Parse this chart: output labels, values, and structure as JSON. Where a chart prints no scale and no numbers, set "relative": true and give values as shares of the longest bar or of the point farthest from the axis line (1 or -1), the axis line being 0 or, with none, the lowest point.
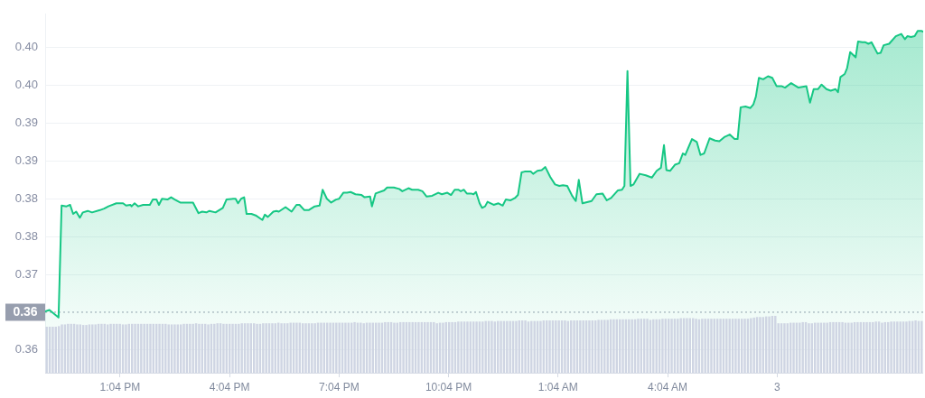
{
  "chart_data": [
    {
      "type": "area",
      "color": "#16c784",
      "grid": "y",
      "x": [
        "--01-02T11:01",
        "--01-02T11:08",
        "--01-02T11:23",
        "--01-02T11:28",
        "--01-02T11:36",
        "--01-02T11:42",
        "--01-02T11:47",
        "--01-02T11:52",
        "--01-02T11:58",
        "--01-02T12:03",
        "--01-02T12:11",
        "--01-02T12:18",
        "--01-02T12:31",
        "--01-02T12:38",
        "--01-02T12:45",
        "--01-02T12:58",
        "--01-02T13:09",
        "--01-02T13:14",
        "--01-02T13:21",
        "--01-02T13:23",
        "--01-02T13:28",
        "--01-02T13:34",
        "--01-02T13:42",
        "--01-02T13:53",
        "--01-02T13:58",
        "--01-02T14:04",
        "--01-02T14:08",
        "--01-02T14:13",
        "--01-02T14:22",
        "--01-02T14:28",
        "--01-02T14:34",
        "--01-02T14:43",
        "--01-02T14:49",
        "--01-02T14:54",
        "--01-02T15:04",
        "--01-02T15:13",
        "--01-02T15:19",
        "--01-02T15:26",
        "--01-02T15:31",
        "--01-02T15:41",
        "--01-02T15:53",
        "--01-02T15:59",
        "--01-02T16:10",
        "--01-02T16:14",
        "--01-02T16:18",
        "--01-02T16:23",
        "--01-02T16:28",
        "--01-02T16:32",
        "--01-02T16:40",
        "--01-02T16:47",
        "--01-02T16:58",
        "--01-02T17:02",
        "--01-02T17:07",
        "--01-02T17:16",
        "--01-02T17:21",
        "--01-02T17:25",
        "--01-02T17:36",
        "--01-02T17:46",
        "--01-02T17:54",
        "--01-02T17:59",
        "--01-02T18:07",
        "--01-02T18:14",
        "--01-02T18:24",
        "--01-02T18:32",
        "--01-02T18:37",
        "--01-02T18:44",
        "--01-02T18:51",
        "--01-02T18:59",
        "--01-02T19:04",
        "--01-02T19:11",
        "--01-02T19:17",
        "--01-02T19:23",
        "--01-02T19:31",
        "--01-02T19:41",
        "--01-02T19:46",
        "--01-02T19:55",
        "--01-02T19:58",
        "--01-02T20:04",
        "--01-02T20:18",
        "--01-02T20:23",
        "--01-02T20:34",
        "--01-02T20:43",
        "--01-02T20:48",
        "--01-02T20:58",
        "--01-02T21:04",
        "--01-02T21:14",
        "--01-02T21:21",
        "--01-02T21:28",
        "--01-02T21:37",
        "--01-02T21:47",
        "--01-02T21:53",
        "--01-02T22:02",
        "--01-02T22:08",
        "--01-02T22:14",
        "--01-02T22:20",
        "--01-02T22:24",
        "--01-02T22:29",
        "--01-02T22:34",
        "--01-02T22:41",
        "--01-02T22:45",
        "--01-02T22:49",
        "--01-02T22:55",
        "--01-02T22:59",
        "--01-02T23:04",
        "--01-02T23:08",
        "--01-02T23:18",
        "--01-02T23:26",
        "--01-02T23:33",
        "--01-02T23:38",
        "--01-02T23:46",
        "--01-02T23:53",
        "--01-02T23:58",
        "--01-03T00:04",
        "--01-03T00:09",
        "--01-03T00:19",
        "--01-03T00:23",
        "--01-03T00:30",
        "--01-03T00:37",
        "--01-03T00:43",
        "--01-03T00:51",
        "--01-03T00:59",
        "--01-03T01:06",
        "--01-03T01:12",
        "--01-03T01:19",
        "--01-03T01:27",
        "--01-03T01:33",
        "--01-03T01:38",
        "--01-03T01:44",
        "--01-03T01:59",
        "--01-03T02:07",
        "--01-03T02:17",
        "--01-03T02:24",
        "--01-03T02:31",
        "--01-03T02:42",
        "--01-03T02:49",
        "--01-03T02:53",
        "--01-03T02:58",
        "--01-03T03:03",
        "--01-03T03:08",
        "--01-03T03:18",
        "--01-03T03:28",
        "--01-03T03:38",
        "--01-03T03:46",
        "--01-03T03:53",
        "--01-03T03:58",
        "--01-03T04:02",
        "--01-03T04:08",
        "--01-03T04:16",
        "--01-03T04:23",
        "--01-03T04:29",
        "--01-03T04:33",
        "--01-03T04:44",
        "--01-03T04:52",
        "--01-03T04:58",
        "--01-03T05:04",
        "--01-03T05:13",
        "--01-03T05:22",
        "--01-03T05:29",
        "--01-03T05:38",
        "--01-03T05:46",
        "--01-03T05:54",
        "--01-03T05:59",
        "--01-03T06:04",
        "--01-03T06:12",
        "--01-03T06:20",
        "--01-03T06:25",
        "--01-03T06:29",
        "--01-03T06:34",
        "--01-03T06:41",
        "--01-03T06:49",
        "--01-03T06:56",
        "--01-03T07:03",
        "--01-03T07:11",
        "--01-03T07:17",
        "--01-03T07:27",
        "--01-03T07:39",
        "--01-03T07:52",
        "--01-03T07:58",
        "--01-03T08:04",
        "--01-03T08:11",
        "--01-03T08:17",
        "--01-03T08:25",
        "--01-03T08:32",
        "--01-03T08:40",
        "--01-03T08:44",
        "--01-03T08:48",
        "--01-03T08:55",
        "--01-03T08:59",
        "--01-03T09:04",
        "--01-03T09:13",
        "--01-03T09:17",
        "--01-03T09:24",
        "--01-03T09:29",
        "--01-03T09:34",
        "--01-03T09:39",
        "--01-03T09:49",
        "--01-03T09:54",
        "--01-03T09:59",
        "--01-03T10:08",
        "--01-03T10:19",
        "--01-03T10:28",
        "--01-03T10:34",
        "--01-03T10:38",
        "--01-03T10:44",
        "--01-03T10:50",
        "--01-03T10:55",
        "--01-03T11:01",
        "--01-03T11:04"
      ],
      "values": [
        0.3701,
        0.3703,
        0.3693,
        0.3841,
        0.384,
        0.3842,
        0.383,
        0.3833,
        0.3825,
        0.3832,
        0.3834,
        0.3832,
        0.3835,
        0.3837,
        0.384,
        0.3844,
        0.3844,
        0.3841,
        0.3842,
        0.384,
        0.3844,
        0.384,
        0.3842,
        0.3842,
        0.3849,
        0.3849,
        0.3842,
        0.385,
        0.3849,
        0.3852,
        0.3849,
        0.3845,
        0.3845,
        0.3845,
        0.3845,
        0.3831,
        0.3833,
        0.3832,
        0.3834,
        0.3832,
        0.3838,
        0.3849,
        0.385,
        0.385,
        0.3844,
        0.385,
        0.3852,
        0.383,
        0.383,
        0.3828,
        0.3822,
        0.3829,
        0.3826,
        0.3833,
        0.3834,
        0.3833,
        0.3839,
        0.3833,
        0.3842,
        0.3842,
        0.3835,
        0.3835,
        0.384,
        0.3841,
        0.3862,
        0.385,
        0.3845,
        0.3849,
        0.385,
        0.3858,
        0.3858,
        0.3859,
        0.3856,
        0.3855,
        0.3852,
        0.3853,
        0.384,
        0.3857,
        0.3861,
        0.3865,
        0.3865,
        0.3863,
        0.386,
        0.3864,
        0.3862,
        0.3862,
        0.386,
        0.3853,
        0.3854,
        0.3858,
        0.3856,
        0.3858,
        0.3855,
        0.3862,
        0.3862,
        0.386,
        0.3862,
        0.3857,
        0.3857,
        0.3856,
        0.3859,
        0.3844,
        0.3838,
        0.384,
        0.3846,
        0.3842,
        0.3844,
        0.3841,
        0.3849,
        0.3848,
        0.3851,
        0.3855,
        0.3885,
        0.3886,
        0.3886,
        0.3883,
        0.3887,
        0.3888,
        0.3892,
        0.3879,
        0.3869,
        0.3867,
        0.3868,
        0.3867,
        0.3854,
        0.3847,
        0.3875,
        0.3844,
        0.3847,
        0.3856,
        0.3857,
        0.3848,
        0.3851,
        0.3861,
        0.3862,
        0.3867,
        0.4019,
        0.3867,
        0.3869,
        0.3883,
        0.3881,
        0.3878,
        0.3887,
        0.3891,
        0.3921,
        0.3888,
        0.3887,
        0.3895,
        0.3897,
        0.391,
        0.3908,
        0.3929,
        0.3925,
        0.3908,
        0.391,
        0.393,
        0.3927,
        0.3926,
        0.3932,
        0.3935,
        0.3929,
        0.3929,
        0.3971,
        0.3972,
        0.397,
        0.3975,
        0.3985,
        0.401,
        0.4008,
        0.4012,
        0.401,
        0.3999,
        0.3999,
        0.3997,
        0.4003,
        0.3997,
        0.3999,
        0.3977,
        0.3995,
        0.3995,
        0.4001,
        0.3995,
        0.3993,
        0.3995,
        0.3991,
        0.4011,
        0.4015,
        0.4023,
        0.4044,
        0.4037,
        0.4058,
        0.4057,
        0.4057,
        0.4055,
        0.4057,
        0.4042,
        0.4043,
        0.4053,
        0.4055,
        0.4065,
        0.4068,
        0.4061,
        0.4065,
        0.4064,
        0.4065,
        0.4072,
        0.4072,
        0.4071
      ],
      "xlim": [
        "--01-02T11:01",
        "--01-03T11:04"
      ],
      "xticks": [
        {
          "value": "--01-02T13:04",
          "label": "1:04 PM"
        },
        {
          "value": "--01-02T16:04",
          "label": "4:04 PM"
        },
        {
          "value": "--01-02T19:04",
          "label": "7:04 PM"
        },
        {
          "value": "--01-02T22:04",
          "label": "10:04 PM"
        },
        {
          "value": "--01-03T01:04",
          "label": "1:04 AM"
        },
        {
          "value": "--01-03T04:04",
          "label": "4:04 AM"
        },
        {
          "value": "--01-03T07:04",
          "label": "3"
        }
      ],
      "ylim": [
        0.362,
        0.4094
      ],
      "yticks": [
        {
          "value": 0.405,
          "label": "0.40"
        },
        {
          "value": 0.4,
          "label": "0.40"
        },
        {
          "value": 0.395,
          "label": "0.39"
        },
        {
          "value": 0.39,
          "label": "0.39"
        },
        {
          "value": 0.385,
          "label": "0.38"
        },
        {
          "value": 0.38,
          "label": "0.38"
        },
        {
          "value": 0.375,
          "label": "0.37"
        },
        {
          "value": 0.365,
          "label": "0.36"
        }
      ],
      "ref_lines": [
        {
          "axis": "y",
          "value": 0.37,
          "color": "#979eae",
          "line_style": "dotted"
        }
      ],
      "annotations": [
        "0.36"
      ]
    },
    {
      "type": "bar",
      "relative": true,
      "color": "#cfd5e3",
      "tick_labels": false,
      "categories": [
        null,
        null,
        null,
        null,
        null,
        null,
        null,
        null,
        null,
        null,
        null,
        null,
        null,
        null,
        null,
        null,
        null,
        null,
        null,
        null,
        null,
        null,
        null,
        null,
        null,
        null,
        null,
        null,
        null,
        null,
        null,
        null,
        null,
        null,
        null,
        null,
        null,
        null,
        null,
        null,
        null,
        null,
        null,
        null,
        null,
        null,
        null,
        null,
        null,
        null,
        null,
        null,
        null,
        null,
        null,
        null,
        null,
        null,
        null,
        null,
        null,
        null,
        null,
        null,
        null,
        null,
        null,
        null,
        null,
        null,
        null,
        null,
        null,
        null,
        null,
        null,
        null,
        null,
        null,
        null,
        null,
        null,
        null,
        null,
        null,
        null,
        null,
        null,
        null,
        null,
        null,
        null,
        null,
        null,
        null,
        null,
        null,
        null,
        null,
        null,
        null,
        null,
        null,
        null,
        null,
        null,
        null,
        null,
        null,
        null,
        null,
        null,
        null,
        null,
        null,
        null,
        null,
        null,
        null,
        null,
        null,
        null,
        null,
        null,
        null,
        null,
        null,
        null,
        null,
        null,
        null,
        null,
        null,
        null,
        null,
        null,
        null,
        null,
        null,
        null,
        null,
        null,
        null,
        null,
        null,
        null,
        null,
        null,
        null,
        null,
        null,
        null,
        null,
        null,
        null,
        null,
        null,
        null,
        null,
        null,
        null,
        null,
        null,
        null,
        null,
        null,
        null,
        null,
        null,
        null,
        null,
        null,
        null,
        null,
        null,
        null,
        null,
        null,
        null,
        null,
        null,
        null,
        null,
        null,
        null,
        null,
        null,
        null,
        null,
        null,
        null,
        null,
        null,
        null,
        null,
        null,
        null,
        null,
        null,
        null,
        null,
        null,
        null,
        null,
        null,
        null,
        null,
        null,
        null,
        null,
        null,
        null,
        null,
        null,
        null,
        null,
        null,
        null,
        null,
        null,
        null,
        null,
        null,
        null,
        null,
        null,
        null,
        null,
        null,
        null,
        null,
        null,
        null,
        null,
        null,
        null,
        null,
        null,
        null,
        null,
        null,
        null,
        null,
        null,
        null,
        null,
        null,
        null,
        null,
        null,
        null,
        null,
        null,
        null,
        null,
        null,
        null,
        null,
        null,
        null,
        null,
        null,
        null,
        null,
        null,
        null,
        null,
        null,
        null,
        null,
        null,
        null,
        null,
        null,
        null,
        null,
        null,
        null,
        null,
        null,
        null,
        null,
        null,
        null,
        null,
        null,
        null,
        null
      ],
      "values": [
        0.81,
        0.81,
        0.81,
        0.81,
        0.82,
        0.85,
        0.85,
        0.86,
        0.86,
        0.86,
        0.85,
        0.85,
        0.84,
        0.84,
        0.85,
        0.85,
        0.85,
        0.86,
        0.86,
        0.86,
        0.85,
        0.86,
        0.86,
        0.86,
        0.86,
        0.85,
        0.85,
        0.86,
        0.86,
        0.86,
        0.86,
        0.86,
        0.86,
        0.86,
        0.86,
        0.86,
        0.86,
        0.86,
        0.86,
        0.86,
        0.85,
        0.85,
        0.85,
        0.85,
        0.85,
        0.86,
        0.86,
        0.86,
        0.86,
        0.87,
        0.86,
        0.86,
        0.86,
        0.85,
        0.86,
        0.86,
        0.87,
        0.87,
        0.86,
        0.86,
        0.86,
        0.86,
        0.86,
        0.86,
        0.87,
        0.87,
        0.87,
        0.87,
        0.87,
        0.86,
        0.86,
        0.87,
        0.87,
        0.87,
        0.87,
        0.87,
        0.88,
        0.87,
        0.87,
        0.87,
        0.88,
        0.88,
        0.88,
        0.88,
        0.87,
        0.87,
        0.87,
        0.87,
        0.87,
        0.88,
        0.88,
        0.88,
        0.88,
        0.88,
        0.88,
        0.88,
        0.88,
        0.88,
        0.88,
        0.88,
        0.88,
        0.89,
        0.88,
        0.88,
        0.87,
        0.88,
        0.88,
        0.88,
        0.88,
        0.88,
        0.88,
        0.89,
        0.89,
        0.89,
        0.88,
        0.88,
        0.89,
        0.89,
        0.89,
        0.89,
        0.89,
        0.89,
        0.89,
        0.89,
        0.89,
        0.89,
        0.89,
        0.89,
        0.87,
        0.88,
        0.88,
        0.89,
        0.89,
        0.89,
        0.89,
        0.9,
        0.9,
        0.9,
        0.9,
        0.9,
        0.9,
        0.9,
        0.9,
        0.9,
        0.91,
        0.91,
        0.91,
        0.9,
        0.91,
        0.91,
        0.91,
        0.91,
        0.91,
        0.91,
        0.91,
        0.92,
        0.92,
        0.92,
        0.9,
        0.91,
        0.91,
        0.91,
        0.91,
        0.92,
        0.92,
        0.92,
        0.92,
        0.92,
        0.92,
        0.92,
        0.92,
        0.91,
        0.92,
        0.92,
        0.92,
        0.92,
        0.92,
        0.92,
        0.92,
        0.92,
        0.92,
        0.93,
        0.93,
        0.93,
        0.93,
        0.94,
        0.94,
        0.94,
        0.94,
        0.94,
        0.94,
        0.94,
        0.94,
        0.94,
        0.95,
        0.95,
        0.95,
        0.95,
        0.93,
        0.94,
        0.94,
        0.94,
        0.95,
        0.95,
        0.95,
        0.95,
        0.95,
        0.95,
        0.96,
        0.96,
        0.96,
        0.96,
        0.96,
        0.95,
        0.94,
        0.95,
        0.95,
        0.95,
        0.95,
        0.95,
        0.95,
        0.95,
        0.95,
        0.95,
        0.95,
        0.95,
        0.95,
        0.95,
        0.95,
        0.95,
        0.95,
        0.96,
        0.97,
        0.98,
        0.98,
        0.98,
        0.99,
        0.99,
        1.0,
        1.0,
        0.87,
        0.87,
        0.87,
        0.87,
        0.88,
        0.88,
        0.88,
        0.88,
        0.89,
        0.89,
        0.87,
        0.87,
        0.88,
        0.88,
        0.88,
        0.88,
        0.88,
        0.89,
        0.89,
        0.89,
        0.89,
        0.89,
        0.88,
        0.88,
        0.88,
        0.89,
        0.89,
        0.89,
        0.89,
        0.89,
        0.89,
        0.89,
        0.9,
        0.9,
        0.88,
        0.89,
        0.89,
        0.9,
        0.9,
        0.9,
        0.9,
        0.9,
        0.9,
        0.91,
        0.91,
        0.92,
        0.91,
        0.91
      ]
    }
  ]
}
